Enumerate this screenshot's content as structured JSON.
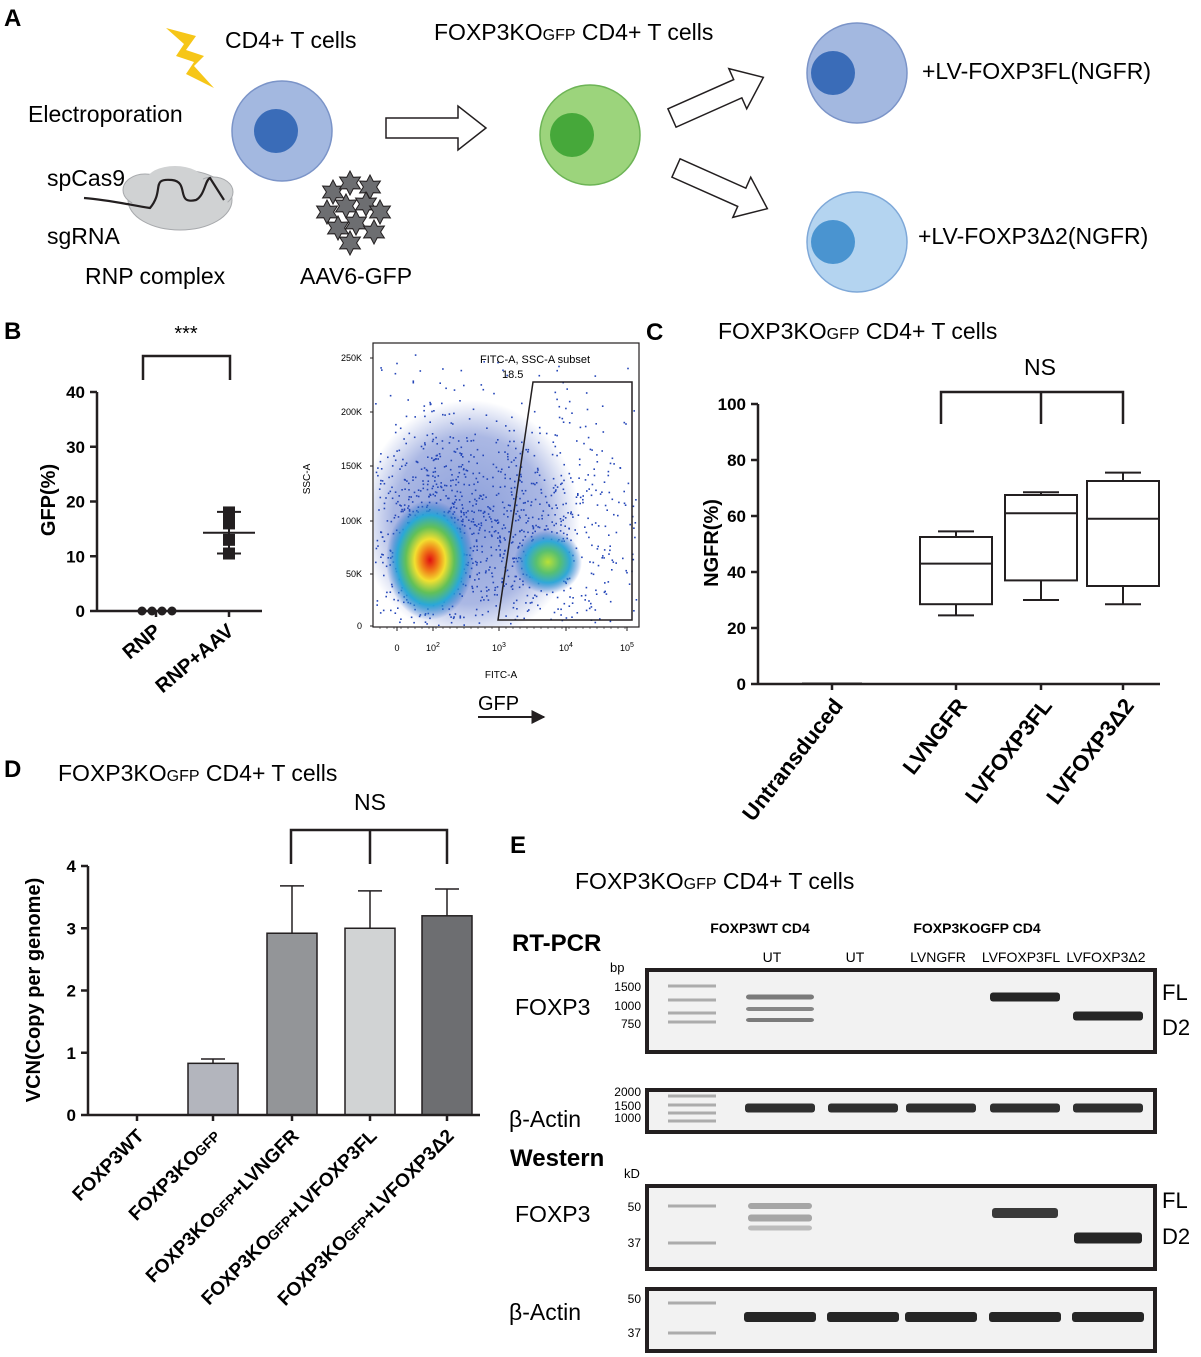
{
  "panels": {
    "A": "A",
    "B": "B",
    "C": "C",
    "D": "D",
    "E": "E"
  },
  "colors": {
    "cell_blue_fill": "#a3b8e0",
    "cell_blue_nucleus": "#3a6cb8",
    "cell_green_fill": "#9cd47c",
    "cell_green_nucleus": "#46a83a",
    "cell_light_fill": "#b4d4f0",
    "cell_light_nucleus": "#4a94d0",
    "lightning": "#f6c618",
    "bar_dark": "#6d6e71",
    "bar_mid": "#939598",
    "bar_light": "#d1d3d4",
    "bar_gfp": "#b3b5bd"
  },
  "panel_a": {
    "cd4_label": "CD4+ T cells",
    "electroporation": "Electroporation",
    "spcas9": "spCas9",
    "sgrna": "sgRNA",
    "rnp_complex": "RNP complex",
    "aav6": "AAV6-GFP",
    "ko_label_main": "FOXP3KO",
    "ko_label_sub": "GFP",
    "ko_label_rest": " CD4+ T cells",
    "lv_fl": "+LV-FOXP3FL(NGFR)",
    "lv_d2": "+LV-FOXP3Δ2(NGFR)"
  },
  "panel_b": {
    "significance": "***",
    "flow_gate_label": "FITC-A, SSC-A subset",
    "flow_gate_value": "18.5",
    "flow_xlabel": "FITC-A",
    "flow_ylabel": "SSC-A",
    "gfp_arrow_label": "GFP",
    "flow_yticks": [
      "250K",
      "200K",
      "150K",
      "100K",
      "50K",
      "0"
    ],
    "flow_xticks": [
      "0",
      "10",
      "10",
      "10",
      "10"
    ],
    "flow_xtick_exps": [
      "",
      "2",
      "3",
      "4",
      "5"
    ]
  },
  "panel_c": {
    "title_main": "FOXP3KO",
    "title_sub": "GFP",
    "title_rest": " CD4+ T cells",
    "significance": "NS"
  },
  "panel_d": {
    "title_main": "FOXP3KO",
    "title_sub": "GFP",
    "title_rest": " CD4+ T cells",
    "significance": "NS",
    "xtick_parts": [
      [
        "FOXP3WT",
        "",
        ""
      ],
      [
        "FOXP3KO",
        "GFP",
        ""
      ],
      [
        "FOXP3KO",
        "GFP",
        "+LVNGFR"
      ],
      [
        "FOXP3KO",
        "GFP",
        "+LVFOXP3FL"
      ],
      [
        "FOXP3KO",
        "GFP",
        "+LVFOXP3Δ2"
      ]
    ]
  },
  "panel_e": {
    "title_main": "FOXP3KO",
    "title_sub": "GFP",
    "title_rest": " CD4+ T cells",
    "group_wt": "FOXP3WT CD4",
    "group_ko": "FOXP3KOGFP CD4",
    "lanes": [
      "UT",
      "UT",
      "LVNGFR",
      "LVFOXP3FL",
      "LVFOXP3Δ2"
    ],
    "rtpcr_title": "RT-PCR",
    "western_title": "Western",
    "bp_unit": "bp",
    "kd_unit": "kD",
    "foxp3_label": "FOXP3",
    "actin_label": "β-Actin",
    "fl_label": "FL",
    "d2_label": "D2",
    "rt_foxp3_markers": [
      "1500",
      "1000",
      "750"
    ],
    "rt_actin_markers": [
      "2000",
      "1500",
      "1000"
    ],
    "wb_foxp3_markers": [
      "50",
      "37"
    ],
    "wb_actin_markers": [
      "50",
      "37"
    ]
  },
  "chart_data": [
    {
      "panel": "B",
      "type": "scatter",
      "title": "",
      "xlabel": "",
      "ylabel": "GFP(%)",
      "categories": [
        "RNP",
        "RNP+AAV"
      ],
      "ylim": [
        0,
        40
      ],
      "yticks": [
        0,
        10,
        20,
        30,
        40
      ],
      "series": [
        {
          "values": [
            0,
            0,
            0,
            0
          ]
        },
        {
          "values": [
            18,
            16,
            13,
            10.5
          ],
          "mean": 14.3,
          "sd": 3.8
        }
      ]
    },
    {
      "panel": "C",
      "type": "box",
      "ylabel": "NGFR(%)",
      "ylim": [
        0,
        100
      ],
      "yticks": [
        0,
        20,
        40,
        60,
        80,
        100
      ],
      "categories": [
        "Untransduced",
        "LVNGFR",
        "LVFOXP3FL",
        "LVFOXP3Δ2"
      ],
      "boxes": [
        {
          "min": 0.2,
          "q1": 0.2,
          "median": 0.2,
          "q3": 0.2,
          "max": 0.2
        },
        {
          "min": 24.5,
          "q1": 28.5,
          "median": 43,
          "q3": 52.5,
          "max": 54.5
        },
        {
          "min": 30,
          "q1": 37,
          "median": 61,
          "q3": 67.5,
          "max": 68.5
        },
        {
          "min": 28.5,
          "q1": 35,
          "median": 59,
          "q3": 72.5,
          "max": 75.5
        }
      ]
    },
    {
      "panel": "D",
      "type": "bar",
      "ylabel": "VCN(Copy per genome)",
      "ylim": [
        0,
        4
      ],
      "yticks": [
        0,
        1,
        2,
        3,
        4
      ],
      "categories": [
        "FOXP3WT",
        "FOXP3KOGFP",
        "FOXP3KOGFP+LVNGFR",
        "FOXP3KOGFP+LVFOXP3FL",
        "FOXP3KOGFP+LVFOXP3Δ2"
      ],
      "values": [
        0,
        0.83,
        2.92,
        3.0,
        3.2
      ],
      "errors": [
        0,
        0.07,
        0.76,
        0.6,
        0.43
      ]
    }
  ]
}
